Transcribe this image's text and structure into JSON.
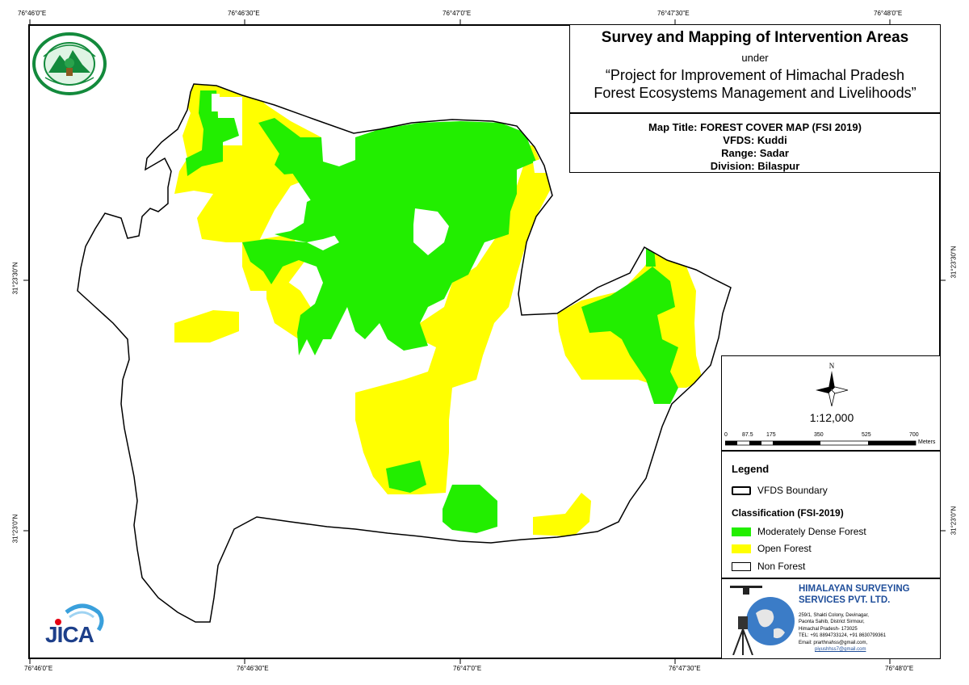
{
  "coords": {
    "top_lon": [
      "76°46'0\"E",
      "76°46'30\"E",
      "76°47'0\"E",
      "76°47'30\"E",
      "76°48'0\"E"
    ],
    "bottom_lon": [
      "76°46'0\"E",
      "76°46'30\"E",
      "76°47'0\"E",
      "76°47'30\"E",
      "76°48'0\"E"
    ],
    "left_lat": [
      "31°23'30\"N",
      "31°23'0\"N"
    ],
    "right_lat": [
      "31°23'30\"N",
      "31°23'0\"N"
    ]
  },
  "title": {
    "main": "Survey and Mapping of Intervention Areas",
    "under": "under",
    "project_line1": "“Project for Improvement of Himachal Pradesh",
    "project_line2": "Forest Ecosystems Management and Livelihoods”"
  },
  "info": {
    "map_title": "Map Title: FOREST COVER MAP (FSI 2019)",
    "vfds": "VFDS: Kuddi",
    "range": "Range: Sadar",
    "division": "Division: Bilaspur"
  },
  "north_label": "N",
  "scale": {
    "ratio": "1:12,000",
    "ticks": [
      "0",
      "87.5",
      "175",
      "350",
      "525",
      "700"
    ],
    "unit": "Meters"
  },
  "legend": {
    "heading": "Legend",
    "boundary": "VFDS Boundary",
    "classification_heading": "Classification (FSI-2019)",
    "items": [
      {
        "label": "Moderately Dense Forest",
        "color": "#22ee00"
      },
      {
        "label": "Open Forest",
        "color": "#ffff00"
      },
      {
        "label": "Non Forest",
        "color": "#ffffff"
      }
    ]
  },
  "company": {
    "name_line1": "HIMALAYAN SURVEYING",
    "name_line2": "SERVICES PVT. LTD.",
    "address": [
      "259/1, Shakti Colony, Devinagar,",
      "Paonta Sahib, District Sirmour,",
      "Himachal Pradesh- 173025",
      "TEL: +91 8894733124, +91 8630799361",
      "Email: prarthnahss@gmail.com,",
      "piyushhss7@gmail.com"
    ],
    "color": "#1f4e9a"
  },
  "jica_label": "JICA",
  "colors": {
    "dense": "#22ee00",
    "open": "#ffff00",
    "logo_green": "#138a3c"
  }
}
